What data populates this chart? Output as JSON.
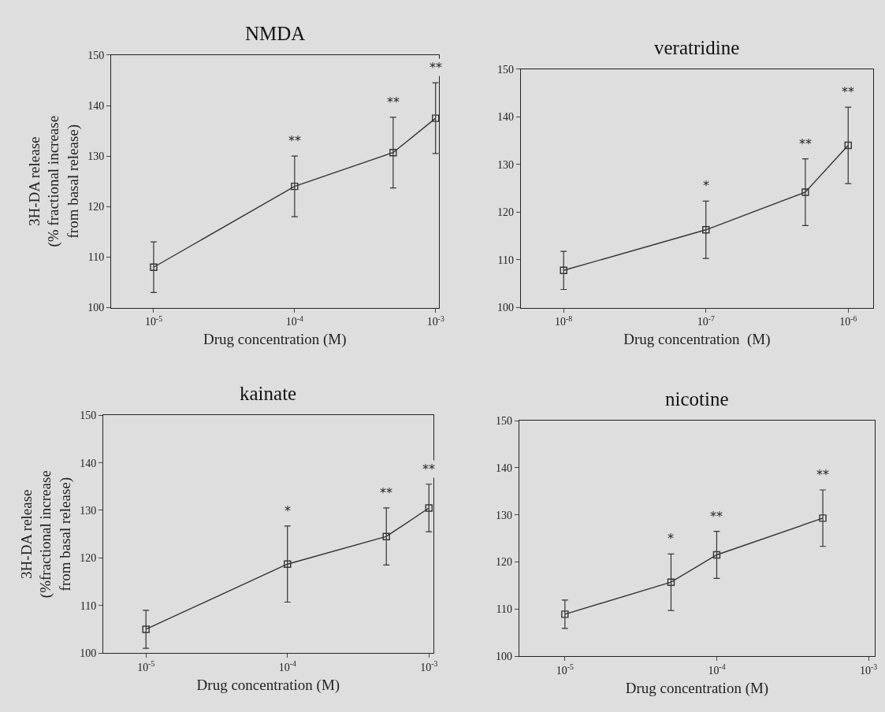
{
  "chart_data": [
    {
      "type": "line",
      "title": "NMDA",
      "xlabel": "Drug concentration (M)",
      "ylabel": "3H-DA release\n(% fractional increase\nfrom basal release)",
      "log": "x",
      "marker": "square",
      "line_style": "solid",
      "grid": false,
      "x": [
        1e-05,
        0.0001,
        0.0005,
        0.001
      ],
      "series": [
        {
          "color": "#333333",
          "values": [
            108,
            124,
            130.7,
            137.5
          ],
          "errors": [
            5,
            6,
            7,
            7
          ]
        }
      ],
      "xlim": [
        5e-06,
        0.00105
      ],
      "xticks": [
        {
          "value": 1e-05,
          "label": "10$^{-5}$"
        },
        {
          "value": 0.0001,
          "label": "10$^{-4}$"
        },
        {
          "value": 0.001,
          "label": "10$^{-3}$"
        }
      ],
      "ylim": [
        100,
        150
      ],
      "yticks": [
        100,
        110,
        120,
        130,
        140,
        150
      ],
      "annotations": [
        "**",
        "**",
        "**"
      ]
    },
    {
      "type": "line",
      "title": "veratridine",
      "xlabel": "Drug concentration  (M)",
      "log": "x",
      "marker": "square",
      "line_style": "solid",
      "grid": false,
      "x": [
        1e-08,
        1e-07,
        5e-07,
        1e-06
      ],
      "series": [
        {
          "color": "#333333",
          "values": [
            107.8,
            116.3,
            124.2,
            134
          ],
          "errors": [
            4,
            6,
            7,
            8
          ]
        }
      ],
      "xlim": [
        5e-09,
        1.5e-06
      ],
      "xticks": [
        {
          "value": 1e-08,
          "label": "10$^{-8}$"
        },
        {
          "value": 1e-07,
          "label": "10$^{-7}$"
        },
        {
          "value": 1e-06,
          "label": "10$^{-6}$"
        }
      ],
      "ylim": [
        100,
        150
      ],
      "yticks": [
        100,
        110,
        120,
        130,
        140,
        150
      ],
      "annotations": [
        "*",
        "**",
        "**"
      ]
    },
    {
      "type": "line",
      "title": "kainate",
      "xlabel": "Drug concentration (M)",
      "ylabel": "3H-DA release\n(%fractional increase\nfrom basal release)",
      "log": "x",
      "marker": "square",
      "line_style": "solid",
      "grid": false,
      "x": [
        1e-05,
        0.0001,
        0.0005,
        0.001
      ],
      "series": [
        {
          "color": "#333333",
          "values": [
            105,
            118.7,
            124.5,
            130.5
          ],
          "errors": [
            4,
            8,
            6,
            5
          ]
        }
      ],
      "xlim": [
        5e-06,
        0.00107
      ],
      "xticks": [
        {
          "value": 1e-05,
          "label": "10$^{-5}$"
        },
        {
          "value": 0.0001,
          "label": "10$^{-4}$"
        },
        {
          "value": 0.001,
          "label": "10$^{-3}$"
        }
      ],
      "ylim": [
        100,
        150
      ],
      "yticks": [
        100,
        110,
        120,
        130,
        140,
        150
      ],
      "annotations": [
        "*",
        "**",
        "**"
      ]
    },
    {
      "type": "line",
      "title": "nicotine",
      "xlabel": "Drug concentration (M)",
      "log": "x",
      "marker": "square",
      "line_style": "solid",
      "grid": false,
      "x": [
        1e-05,
        5e-05,
        0.0001,
        0.0005
      ],
      "series": [
        {
          "color": "#333333",
          "values": [
            108.9,
            115.7,
            121.5,
            129.3
          ],
          "errors": [
            3,
            6,
            5,
            6
          ]
        }
      ],
      "xlim": [
        5e-06,
        0.0011
      ],
      "xticks": [
        {
          "value": 1e-05,
          "label": "10$^{-5}$"
        },
        {
          "value": 0.0001,
          "label": "10$^{-4}$"
        },
        {
          "value": 0.001,
          "label": "10$^{-3}$"
        }
      ],
      "ylim": [
        100,
        150
      ],
      "yticks": [
        100,
        110,
        120,
        130,
        140,
        150
      ],
      "annotations": [
        "*",
        "**",
        "**"
      ]
    }
  ]
}
